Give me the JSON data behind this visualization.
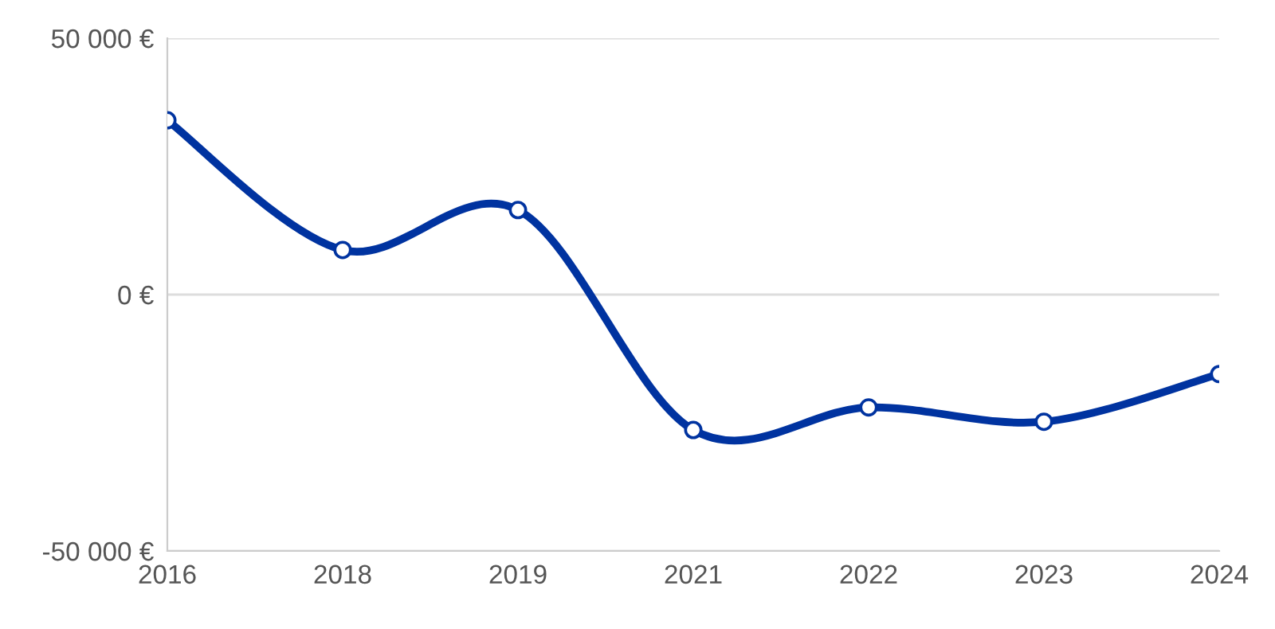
{
  "chart_data": {
    "type": "line",
    "categories": [
      "2016",
      "2018",
      "2019",
      "2021",
      "2022",
      "2023",
      "2024"
    ],
    "series": [
      {
        "color": "#0033a0",
        "values": [
          34000,
          8700,
          16500,
          -26400,
          -22000,
          -24800,
          -15500
        ]
      }
    ],
    "ylim": [
      -50000,
      50000
    ],
    "yticks": [
      {
        "value": -50000,
        "label": "-50 000 €"
      },
      {
        "value": 0,
        "label": "0 €"
      },
      {
        "value": 50000,
        "label": "50 000 €"
      }
    ],
    "grid": "y",
    "marker": "circle",
    "line_style": "solid",
    "legend": false
  }
}
